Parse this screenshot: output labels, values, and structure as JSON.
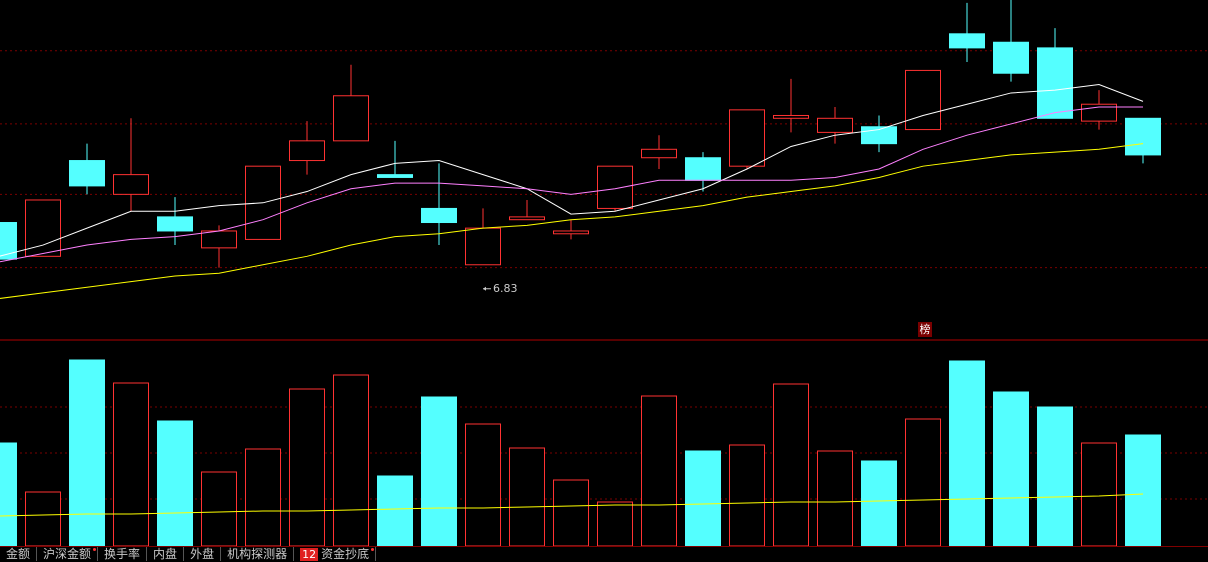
{
  "chart_data": {
    "type": "candlestick",
    "colors": {
      "up": "#ff3232",
      "down": "#54ffff",
      "grid": "#7a0000",
      "separator": "#b00000"
    },
    "open": [
      6.98,
      6.86,
      7.2,
      7.08,
      7.0,
      6.89,
      6.92,
      7.2,
      7.27,
      7.15,
      7.03,
      6.83,
      6.99,
      6.94,
      7.03,
      7.21,
      7.21,
      7.18,
      7.35,
      7.3,
      7.32,
      7.31,
      7.65,
      7.62,
      7.6,
      7.34,
      7.35
    ],
    "high": [
      6.98,
      7.06,
      7.26,
      7.35,
      7.07,
      6.97,
      7.18,
      7.34,
      7.54,
      7.27,
      7.19,
      7.03,
      7.06,
      6.99,
      7.18,
      7.29,
      7.23,
      7.38,
      7.49,
      7.39,
      7.36,
      7.52,
      7.76,
      7.77,
      7.67,
      7.45,
      7.35
    ],
    "low": [
      6.85,
      6.86,
      7.08,
      7.02,
      6.9,
      6.82,
      6.92,
      7.15,
      7.27,
      7.14,
      6.9,
      6.83,
      6.99,
      6.92,
      7.02,
      7.17,
      7.09,
      7.17,
      7.3,
      7.26,
      7.23,
      7.31,
      7.55,
      7.48,
      7.35,
      7.31,
      7.19
    ],
    "close": [
      6.85,
      7.06,
      7.11,
      7.15,
      6.95,
      6.95,
      7.18,
      7.27,
      7.43,
      7.14,
      6.98,
      6.96,
      7.0,
      6.95,
      7.18,
      7.24,
      7.13,
      7.38,
      7.36,
      7.35,
      7.26,
      7.52,
      7.6,
      7.51,
      7.35,
      7.4,
      7.22
    ],
    "ylim": [
      6.57,
      7.77
    ],
    "ygrid": [
      7.59,
      7.33,
      7.08,
      6.82
    ],
    "ma": [
      {
        "color": "#ffffff",
        "values": [
          6.86,
          6.9,
          6.96,
          7.02,
          7.02,
          7.04,
          7.05,
          7.09,
          7.15,
          7.19,
          7.2,
          7.15,
          7.1,
          7.01,
          7.02,
          7.06,
          7.1,
          7.17,
          7.25,
          7.29,
          7.31,
          7.36,
          7.4,
          7.44,
          7.45,
          7.47,
          7.41
        ]
      },
      {
        "color": "#ff80ff",
        "values": [
          6.84,
          6.87,
          6.9,
          6.92,
          6.93,
          6.95,
          6.99,
          7.05,
          7.1,
          7.12,
          7.12,
          7.11,
          7.1,
          7.08,
          7.1,
          7.13,
          7.13,
          7.13,
          7.13,
          7.14,
          7.17,
          7.24,
          7.29,
          7.33,
          7.37,
          7.39,
          7.39
        ]
      },
      {
        "color": "#ffff00",
        "values": [
          6.71,
          6.73,
          6.75,
          6.77,
          6.79,
          6.8,
          6.83,
          6.86,
          6.9,
          6.93,
          6.94,
          6.96,
          6.97,
          6.99,
          7.0,
          7.02,
          7.04,
          7.07,
          7.09,
          7.11,
          7.14,
          7.18,
          7.2,
          7.22,
          7.23,
          7.24,
          7.26
        ]
      }
    ],
    "low_label": 6.83,
    "badge": "榜",
    "volume": {
      "values": [
        103,
        54,
        186,
        163,
        125,
        74,
        97,
        157,
        171,
        70,
        149,
        122,
        98,
        66,
        44,
        150,
        95,
        101,
        162,
        95,
        85,
        127,
        185,
        154,
        139,
        103,
        111
      ],
      "ylim": [
        0,
        206
      ],
      "grid": [
        47,
        93,
        139
      ],
      "ma": {
        "color": "#ffff00",
        "values": [
          30,
          31,
          32,
          32,
          33,
          34,
          35,
          35,
          36,
          37,
          38,
          38,
          39,
          40,
          41,
          41,
          42,
          43,
          44,
          44,
          45,
          46,
          47,
          48,
          49,
          50,
          52
        ]
      }
    }
  },
  "tabs": [
    "金额",
    "沪深金额",
    "换手率",
    "内盘",
    "外盘",
    "机构探测器",
    "12",
    "资金抄底"
  ]
}
